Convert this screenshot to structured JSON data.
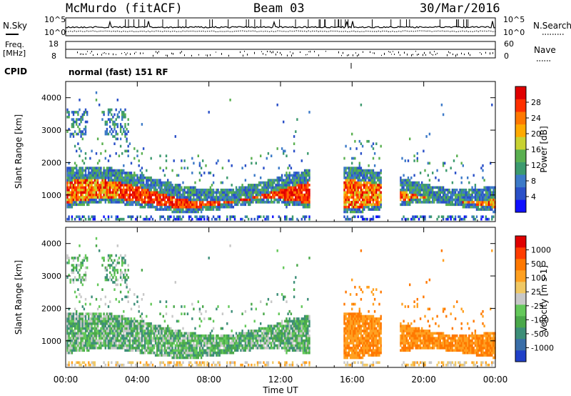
{
  "header": {
    "station": "McMurdo (fitACF)",
    "beam": "Beam 03",
    "date": "30/Mar/2016"
  },
  "noise_panel": {
    "left_label": "N.Sky",
    "right_label": "N.Search",
    "left_ticks": [
      "10^5",
      "10^0"
    ],
    "right_ticks": [
      "10^5",
      "10^0"
    ]
  },
  "freq_panel": {
    "left_label_1": "Freq.",
    "left_label_2": "[MHz]",
    "right_label": "Nave",
    "left_ticks": [
      "18",
      "8"
    ],
    "right_ticks": [
      "60",
      "0"
    ]
  },
  "cpid": {
    "label": "CPID",
    "mode": "normal (fast) 151 RF"
  },
  "chart_data": [
    {
      "type": "heatmap",
      "name_label": "Power",
      "ylabel": "Slant Range [km]",
      "y_ticks": [
        1000,
        2000,
        3000,
        4000
      ],
      "ylim": [
        180,
        4500
      ],
      "x_ticks": [
        "00:00",
        "04:00",
        "08:00",
        "12:00",
        "16:00",
        "20:00",
        "00:00"
      ],
      "xlim_hours": [
        0,
        24
      ],
      "colorbar_label": "Power [dB]",
      "colorbar_ticks": [
        "4",
        "8",
        "12",
        "16",
        "20",
        "24",
        "28"
      ],
      "colorbar_colors": [
        "#1010ff",
        "#2a50c8",
        "#3c7ac8",
        "#3c9a6e",
        "#5ab050",
        "#c8d232",
        "#ffaa00",
        "#ff7800",
        "#ff3000",
        "#e00000"
      ]
    },
    {
      "type": "heatmap",
      "name_label": "Velocity",
      "ylabel": "Slant Range [km]",
      "y_ticks": [
        1000,
        2000,
        3000,
        4000
      ],
      "ylim": [
        180,
        4500
      ],
      "x_ticks": [
        "00:00",
        "04:00",
        "08:00",
        "12:00",
        "16:00",
        "20:00",
        "00:00"
      ],
      "xlim_hours": [
        0,
        24
      ],
      "colorbar_label": "Velocity [m s-1]",
      "colorbar_ticks": [
        "1000",
        "500",
        "100",
        "25",
        "-25",
        "-100",
        "-500",
        "-1000"
      ],
      "colorbar_colors": [
        "#2040c8",
        "#3a6ea8",
        "#3c8e78",
        "#4aa84a",
        "#64c85a",
        "#c8c8c8",
        "#f0c864",
        "#ffa020",
        "#ff7800",
        "#ff3c00",
        "#e00000"
      ]
    }
  ],
  "x_axis_label": "Time UT"
}
